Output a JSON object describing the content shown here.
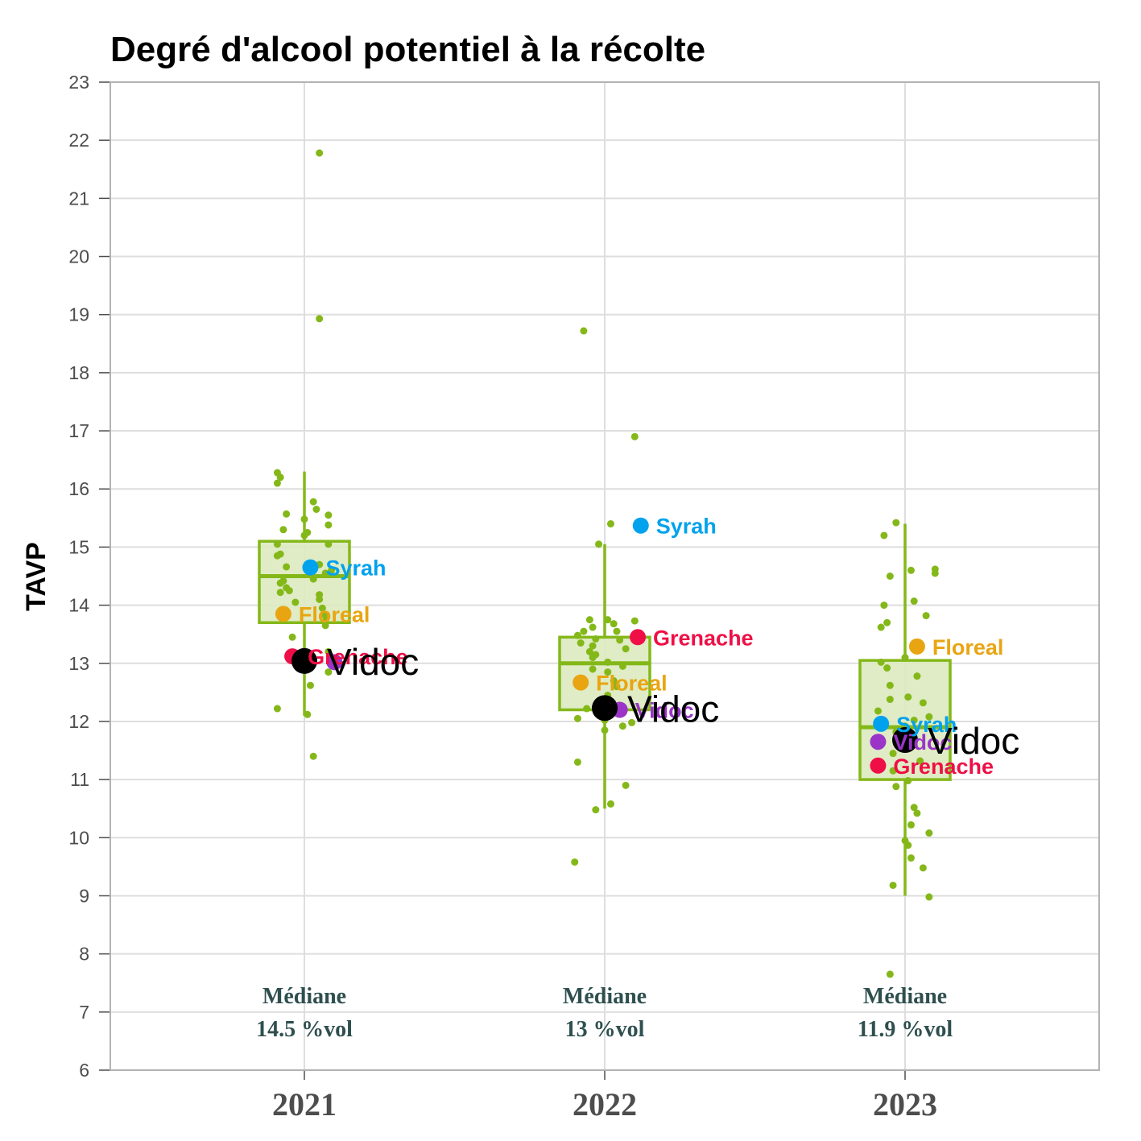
{
  "chart_data": {
    "type": "box",
    "title": "Degré d'alcool potentiel à la récolte",
    "xlabel": "",
    "ylabel": "TAVP",
    "ylim": [
      6,
      23
    ],
    "yticks": [
      6,
      7,
      8,
      9,
      10,
      11,
      12,
      13,
      14,
      15,
      16,
      17,
      18,
      19,
      20,
      21,
      22,
      23
    ],
    "categories": [
      "2021",
      "2022",
      "2023"
    ],
    "grid": true,
    "colors": {
      "box_line": "#84b819",
      "box_fill": "#dbeabf",
      "points": "#84b819",
      "grid": "#dedede",
      "panel_border": "#b3b3b3",
      "Syrah": "#00a2ee",
      "Floreal": "#e9a511",
      "Grenache": "#ef0f46",
      "Vidoc": "#000000",
      "purple": "#9b35c9",
      "median_text": "#2f4f4f"
    },
    "boxes": [
      {
        "category": "2021",
        "whisker_low": 12.1,
        "q1": 13.7,
        "median": 14.5,
        "q3": 15.1,
        "whisker_high": 16.3
      },
      {
        "category": "2022",
        "whisker_low": 10.5,
        "q1": 12.2,
        "median": 13.0,
        "q3": 13.45,
        "whisker_high": 15.05
      },
      {
        "category": "2023",
        "whisker_low": 9.0,
        "q1": 11.0,
        "median": 11.9,
        "q3": 13.05,
        "whisker_high": 15.4
      }
    ],
    "median_annotations": [
      {
        "category": "2021",
        "line1": "Médiane",
        "line2": "14.5 %vol"
      },
      {
        "category": "2022",
        "line1": "Médiane",
        "line2": "13 %vol"
      },
      {
        "category": "2023",
        "line1": "Médiane",
        "line2": "11.9 %vol"
      }
    ],
    "highlighted": [
      {
        "category": "2021",
        "name": "Syrah",
        "label": "Syrah",
        "value": 14.65,
        "jitter": 0.02,
        "style": "cultivar"
      },
      {
        "category": "2021",
        "name": "Floreal",
        "label": "Floreal",
        "value": 13.85,
        "jitter": -0.07,
        "style": "cultivar"
      },
      {
        "category": "2021",
        "name": "Grenache",
        "label": "Grenache",
        "value": 13.12,
        "jitter": -0.04,
        "style": "cultivar"
      },
      {
        "category": "2021",
        "name": "purple",
        "label": "",
        "value": 13.02,
        "jitter": 0.1,
        "style": "dot"
      },
      {
        "category": "2021",
        "name": "Vidoc",
        "label": "Vidoc",
        "value": 13.04,
        "jitter": 0.0,
        "style": "vidoc"
      },
      {
        "category": "2022",
        "name": "Syrah",
        "label": "Syrah",
        "value": 15.37,
        "jitter": 0.12,
        "style": "cultivar"
      },
      {
        "category": "2022",
        "name": "Grenache",
        "label": "Grenache",
        "value": 13.45,
        "jitter": 0.11,
        "style": "cultivar"
      },
      {
        "category": "2022",
        "name": "Floreal",
        "label": "Floreal",
        "value": 12.67,
        "jitter": -0.08,
        "style": "cultivar"
      },
      {
        "category": "2022",
        "name": "purple",
        "label": "Vidoc",
        "value": 12.2,
        "jitter": 0.05,
        "style": "cultivar"
      },
      {
        "category": "2022",
        "name": "Vidoc",
        "label": "Vidoc",
        "value": 12.23,
        "jitter": 0.0,
        "style": "vidoc"
      },
      {
        "category": "2023",
        "name": "Floreal",
        "label": "Floreal",
        "value": 13.29,
        "jitter": 0.04,
        "style": "cultivar"
      },
      {
        "category": "2023",
        "name": "Syrah",
        "label": "Syrah",
        "value": 11.96,
        "jitter": -0.08,
        "style": "cultivar"
      },
      {
        "category": "2023",
        "name": "purple",
        "label": "Vidoc",
        "value": 11.65,
        "jitter": -0.09,
        "style": "cultivar"
      },
      {
        "category": "2023",
        "name": "Grenache",
        "label": "Grenache",
        "value": 11.24,
        "jitter": -0.09,
        "style": "cultivar"
      },
      {
        "category": "2023",
        "name": "Vidoc",
        "label": "Vidoc",
        "value": 11.68,
        "jitter": 0.0,
        "style": "vidoc"
      }
    ],
    "points": [
      {
        "category": "2021",
        "values": [
          21.78,
          18.93,
          16.28,
          16.2,
          16.1,
          15.78,
          15.65,
          15.57,
          15.55,
          15.48,
          15.38,
          15.3,
          15.25,
          15.2,
          15.05,
          15.05,
          14.88,
          14.85,
          14.7,
          14.66,
          14.6,
          14.55,
          14.45,
          14.42,
          14.38,
          14.3,
          14.25,
          14.22,
          14.18,
          14.1,
          14.05,
          13.95,
          13.82,
          13.72,
          13.65,
          13.45,
          13.2,
          13.15,
          12.85,
          12.62,
          12.22,
          12.12,
          11.4
        ],
        "jitter": [
          0.05,
          0.05,
          -0.09,
          -0.08,
          -0.09,
          0.03,
          0.04,
          -0.06,
          0.08,
          0.0,
          0.08,
          -0.07,
          0.01,
          0.0,
          0.08,
          -0.09,
          -0.08,
          -0.09,
          0.05,
          -0.06,
          0.09,
          0.07,
          0.03,
          -0.07,
          -0.08,
          -0.06,
          -0.05,
          -0.08,
          0.05,
          0.05,
          -0.03,
          0.06,
          0.07,
          0.07,
          0.07,
          -0.04,
          0.08,
          0.02,
          0.08,
          0.02,
          -0.09,
          0.01,
          0.03
        ]
      },
      {
        "category": "2022",
        "values": [
          18.72,
          16.9,
          15.4,
          15.05,
          13.75,
          13.75,
          13.73,
          13.68,
          13.62,
          13.55,
          13.55,
          13.48,
          13.42,
          13.4,
          13.35,
          13.3,
          13.25,
          13.2,
          13.15,
          13.1,
          13.02,
          12.95,
          12.9,
          12.85,
          12.7,
          12.6,
          12.45,
          12.35,
          12.22,
          12.05,
          12.02,
          11.98,
          11.92,
          11.85,
          11.3,
          10.9,
          10.58,
          10.48,
          9.58
        ],
        "jitter": [
          -0.07,
          0.1,
          0.02,
          -0.02,
          -0.05,
          0.01,
          0.1,
          0.03,
          -0.04,
          -0.07,
          0.04,
          -0.09,
          -0.03,
          0.05,
          -0.08,
          -0.04,
          0.07,
          -0.05,
          -0.03,
          -0.04,
          0.01,
          0.06,
          -0.04,
          0.01,
          0.03,
          0.04,
          0.01,
          -0.02,
          -0.06,
          -0.09,
          0.0,
          0.09,
          0.06,
          0.0,
          -0.09,
          0.07,
          0.02,
          -0.03,
          -0.1
        ]
      },
      {
        "category": "2023",
        "values": [
          15.42,
          15.2,
          14.62,
          14.6,
          14.55,
          14.5,
          14.07,
          14.0,
          13.82,
          13.7,
          13.62,
          13.1,
          13.02,
          12.92,
          12.78,
          12.62,
          12.42,
          12.38,
          12.32,
          12.18,
          12.08,
          12.02,
          11.92,
          11.82,
          11.45,
          11.32,
          11.15,
          10.98,
          10.88,
          10.52,
          10.42,
          10.22,
          10.08,
          9.95,
          9.87,
          9.65,
          9.48,
          9.18,
          8.98,
          7.65
        ],
        "jitter": [
          -0.03,
          -0.07,
          0.1,
          0.02,
          0.1,
          -0.05,
          0.03,
          -0.07,
          0.07,
          -0.06,
          -0.08,
          0.0,
          -0.08,
          -0.06,
          0.04,
          -0.05,
          0.01,
          -0.05,
          0.06,
          -0.09,
          0.08,
          0.03,
          0.0,
          -0.03,
          -0.04,
          0.05,
          -0.04,
          0.01,
          -0.03,
          0.03,
          0.04,
          0.02,
          0.08,
          0.0,
          0.01,
          0.02,
          0.06,
          -0.04,
          0.08,
          -0.05
        ]
      }
    ]
  }
}
